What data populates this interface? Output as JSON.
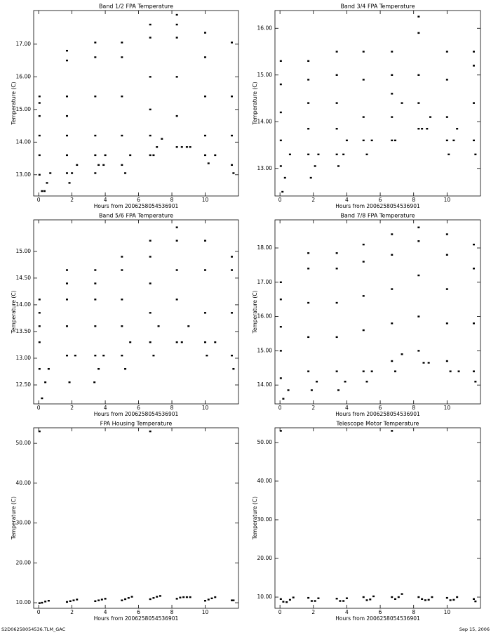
{
  "chart_data": [
    {
      "type": "scatter",
      "title": "Band 1/2 FPA Temperature",
      "xlabel": "Hours from 2006258054536901",
      "ylabel": "Temperature (C)",
      "color": "#000000",
      "xlim": [
        -0.3,
        12.0
      ],
      "xticks": [
        0,
        2,
        4,
        6,
        8,
        10
      ],
      "ylim": [
        12.35,
        18.03
      ],
      "yticks": [
        {
          "value": 13,
          "label": "13.00"
        },
        {
          "value": 14,
          "label": "14.00"
        },
        {
          "value": 15,
          "label": "15.00"
        },
        {
          "value": 16,
          "label": "16.00"
        },
        {
          "value": 17,
          "label": "17.00"
        }
      ],
      "x": [
        0.05,
        0.05,
        0.05,
        0.05,
        0.05,
        0.05,
        0.2,
        0.35,
        0.5,
        0.7,
        1.7,
        1.7,
        1.7,
        1.7,
        1.7,
        1.7,
        1.7,
        1.85,
        2.0,
        2.3,
        3.4,
        3.4,
        3.4,
        3.4,
        3.4,
        3.4,
        3.6,
        3.9,
        4.0,
        5.0,
        5.0,
        5.0,
        5.0,
        5.0,
        5.2,
        5.5,
        6.7,
        6.7,
        6.7,
        6.7,
        6.7,
        6.7,
        6.9,
        7.1,
        7.4,
        8.3,
        8.3,
        8.3,
        8.3,
        8.3,
        8.3,
        8.6,
        8.9,
        9.1,
        10.0,
        10.0,
        10.0,
        10.0,
        10.0,
        10.2,
        10.6,
        11.6,
        11.6,
        11.6,
        11.6,
        11.7
      ],
      "y": [
        13.0,
        13.6,
        14.2,
        14.8,
        15.2,
        15.4,
        12.5,
        12.5,
        12.75,
        13.05,
        13.05,
        13.6,
        14.2,
        14.8,
        15.4,
        16.5,
        16.8,
        12.75,
        13.05,
        13.3,
        13.05,
        13.6,
        14.2,
        15.4,
        16.6,
        17.05,
        13.3,
        13.3,
        13.6,
        13.3,
        14.2,
        15.4,
        16.6,
        17.05,
        13.05,
        13.6,
        13.6,
        14.2,
        15.0,
        16.0,
        17.2,
        17.6,
        13.6,
        13.85,
        14.1,
        13.85,
        14.8,
        16.0,
        17.2,
        17.6,
        17.9,
        13.85,
        13.85,
        13.85,
        13.6,
        14.2,
        15.4,
        16.6,
        17.35,
        13.35,
        13.6,
        13.3,
        14.2,
        15.4,
        17.05,
        13.05
      ]
    },
    {
      "type": "scatter",
      "title": "Band 3/4 FPA Temperature",
      "xlabel": "Hours from 2006258054536901",
      "ylabel": "Temperature (C)",
      "color": "#000000",
      "xlim": [
        -0.3,
        12.0
      ],
      "xticks": [
        0,
        2,
        4,
        6,
        8,
        10
      ],
      "ylim": [
        12.41,
        16.38
      ],
      "yticks": [
        {
          "value": 13,
          "label": "13.00"
        },
        {
          "value": 14,
          "label": "14.00"
        },
        {
          "value": 15,
          "label": "15.00"
        },
        {
          "value": 16,
          "label": "16.00"
        }
      ],
      "x": [
        0.05,
        0.05,
        0.05,
        0.05,
        0.05,
        0.15,
        0.3,
        0.6,
        1.7,
        1.7,
        1.7,
        1.7,
        1.7,
        1.85,
        2.1,
        2.3,
        3.4,
        3.4,
        3.4,
        3.4,
        3.4,
        3.5,
        3.8,
        4.0,
        5.0,
        5.0,
        5.0,
        5.0,
        5.2,
        5.5,
        6.7,
        6.7,
        6.7,
        6.7,
        6.7,
        6.9,
        7.3,
        8.3,
        8.3,
        8.3,
        8.3,
        8.3,
        8.5,
        8.8,
        9.0,
        10.0,
        10.0,
        10.0,
        10.0,
        10.1,
        10.4,
        10.6,
        11.6,
        11.6,
        11.6,
        11.6,
        11.7
      ],
      "y": [
        13.05,
        13.6,
        14.2,
        14.8,
        15.3,
        12.5,
        12.8,
        13.3,
        13.3,
        13.85,
        14.4,
        14.9,
        15.3,
        12.8,
        13.05,
        13.3,
        13.3,
        13.85,
        14.4,
        15.0,
        15.5,
        13.05,
        13.3,
        13.6,
        13.6,
        14.1,
        14.9,
        15.5,
        13.3,
        13.6,
        13.6,
        14.1,
        14.6,
        15.0,
        15.5,
        13.6,
        14.4,
        13.85,
        14.4,
        15.0,
        15.9,
        16.25,
        13.85,
        13.85,
        14.1,
        13.6,
        14.1,
        14.9,
        15.5,
        13.3,
        13.6,
        13.85,
        13.6,
        14.4,
        15.2,
        15.5,
        13.3
      ]
    },
    {
      "type": "scatter",
      "title": "Band 5/6 FPA Temperature",
      "xlabel": "Hours from 2006258054536901",
      "ylabel": "Temperature (C)",
      "color": "#000000",
      "xlim": [
        -0.3,
        12.0
      ],
      "xticks": [
        0,
        2,
        4,
        6,
        8,
        10
      ],
      "ylim": [
        12.145,
        15.59
      ],
      "yticks": [
        {
          "value": 12.5,
          "label": "12.50"
        },
        {
          "value": 13,
          "label": "13.00"
        },
        {
          "value": 13.5,
          "label": "13.50"
        },
        {
          "value": 14,
          "label": "14.00"
        },
        {
          "value": 14.5,
          "label": "14.50"
        },
        {
          "value": 15,
          "label": "15.00"
        }
      ],
      "x": [
        0.05,
        0.05,
        0.05,
        0.05,
        0.05,
        0.2,
        0.4,
        0.6,
        1.7,
        1.7,
        1.7,
        1.7,
        1.7,
        1.85,
        2.2,
        3.4,
        3.4,
        3.4,
        3.4,
        3.4,
        3.35,
        3.6,
        3.9,
        5.0,
        5.0,
        5.0,
        5.0,
        5.0,
        5.2,
        5.5,
        6.7,
        6.7,
        6.7,
        6.7,
        6.7,
        6.9,
        7.2,
        8.3,
        8.3,
        8.3,
        8.3,
        8.3,
        8.6,
        9.0,
        10.0,
        10.0,
        10.0,
        10.0,
        10.1,
        10.6,
        11.6,
        11.6,
        11.6,
        11.6,
        11.7
      ],
      "y": [
        12.8,
        13.3,
        13.6,
        13.85,
        14.1,
        12.25,
        12.55,
        12.8,
        13.05,
        13.6,
        14.1,
        14.4,
        14.65,
        12.55,
        13.05,
        13.05,
        13.6,
        14.1,
        14.4,
        14.65,
        12.55,
        12.8,
        13.05,
        13.05,
        13.6,
        14.1,
        14.65,
        14.9,
        12.8,
        13.3,
        13.3,
        13.85,
        14.4,
        14.9,
        15.2,
        13.05,
        13.6,
        13.3,
        14.1,
        14.65,
        15.2,
        15.45,
        13.3,
        13.6,
        13.3,
        13.85,
        14.65,
        15.2,
        13.05,
        13.3,
        13.05,
        13.85,
        14.65,
        14.9,
        12.8
      ]
    },
    {
      "type": "scatter",
      "title": "Band 7/8 FPA Temperature",
      "xlabel": "Hours from 2006258054536901",
      "ylabel": "Temperature (C)",
      "color": "#000000",
      "xlim": [
        -0.3,
        12.0
      ],
      "xticks": [
        0,
        2,
        4,
        6,
        8,
        10
      ],
      "ylim": [
        13.45,
        18.82
      ],
      "yticks": [
        {
          "value": 14,
          "label": "14.00"
        },
        {
          "value": 15,
          "label": "15.00"
        },
        {
          "value": 16,
          "label": "16.00"
        },
        {
          "value": 17,
          "label": "17.00"
        },
        {
          "value": 18,
          "label": "18.00"
        }
      ],
      "x": [
        0.05,
        0.05,
        0.05,
        0.05,
        0.05,
        0.2,
        0.5,
        1.7,
        1.7,
        1.7,
        1.7,
        1.7,
        1.9,
        2.2,
        3.4,
        3.4,
        3.4,
        3.4,
        3.4,
        3.5,
        3.9,
        5.0,
        5.0,
        5.0,
        5.0,
        5.0,
        5.2,
        5.5,
        6.7,
        6.7,
        6.7,
        6.7,
        6.7,
        6.9,
        7.3,
        8.3,
        8.3,
        8.3,
        8.3,
        8.3,
        8.6,
        8.9,
        10.0,
        10.0,
        10.0,
        10.0,
        10.0,
        10.2,
        10.7,
        11.6,
        11.6,
        11.6,
        11.6,
        11.7
      ],
      "y": [
        14.2,
        15.0,
        15.7,
        16.5,
        17.0,
        13.6,
        13.85,
        14.4,
        15.4,
        16.4,
        17.4,
        17.85,
        13.85,
        14.1,
        14.4,
        15.4,
        16.4,
        17.4,
        17.85,
        13.85,
        14.1,
        14.4,
        15.6,
        16.6,
        17.6,
        18.1,
        14.1,
        14.4,
        14.7,
        15.8,
        16.8,
        17.8,
        18.4,
        14.4,
        14.9,
        15.0,
        16.0,
        17.2,
        18.2,
        18.6,
        14.65,
        14.65,
        14.7,
        15.8,
        16.8,
        17.8,
        18.4,
        14.4,
        14.4,
        14.4,
        15.8,
        17.4,
        18.1,
        14.1
      ]
    },
    {
      "type": "scatter",
      "title": "FPA Housing Temperature",
      "xlabel": "Hours from 2006258054536901",
      "ylabel": "Temperature (C)",
      "color": "#000000",
      "xlim": [
        -0.3,
        12.0
      ],
      "xticks": [
        0,
        2,
        4,
        6,
        8,
        10
      ],
      "ylim": [
        8.6,
        53.9
      ],
      "yticks": [
        {
          "value": 10,
          "label": "10.00"
        },
        {
          "value": 20,
          "label": "20.00"
        },
        {
          "value": 30,
          "label": "30.00"
        },
        {
          "value": 40,
          "label": "40.00"
        },
        {
          "value": 50,
          "label": "50.00"
        }
      ],
      "x": [
        0.05,
        0.05,
        0.2,
        0.4,
        0.6,
        1.7,
        1.9,
        2.1,
        2.3,
        3.4,
        3.6,
        3.8,
        4.0,
        5.0,
        5.2,
        5.4,
        5.6,
        6.7,
        6.7,
        6.9,
        7.1,
        7.3,
        8.3,
        8.5,
        8.7,
        8.9,
        9.1,
        10.0,
        10.2,
        10.4,
        10.6,
        11.6,
        11.7
      ],
      "y": [
        9.9,
        53.0,
        10.0,
        10.3,
        10.5,
        10.2,
        10.4,
        10.6,
        10.8,
        10.4,
        10.6,
        10.8,
        11.0,
        10.6,
        10.9,
        11.2,
        11.5,
        10.9,
        53.0,
        11.2,
        11.5,
        11.7,
        11.0,
        11.3,
        11.4,
        11.4,
        11.4,
        10.5,
        10.8,
        11.1,
        11.4,
        10.6,
        10.6
      ]
    },
    {
      "type": "scatter",
      "title": "Telescope Motor Temperature",
      "xlabel": "Hours from 2006258054536901",
      "ylabel": "Temperature (C)",
      "color": "#000000",
      "xlim": [
        -0.3,
        12.0
      ],
      "xticks": [
        0,
        2,
        4,
        6,
        8,
        10
      ],
      "ylim": [
        7.1,
        53.8
      ],
      "yticks": [
        {
          "value": 10,
          "label": "10.00"
        },
        {
          "value": 20,
          "label": "20.00"
        },
        {
          "value": 30,
          "label": "30.00"
        },
        {
          "value": 40,
          "label": "40.00"
        },
        {
          "value": 50,
          "label": "50.00"
        }
      ],
      "x": [
        0.05,
        0.05,
        0.2,
        0.4,
        0.6,
        0.8,
        1.7,
        1.9,
        2.1,
        2.3,
        3.4,
        3.6,
        3.8,
        4.0,
        5.0,
        5.2,
        5.4,
        5.6,
        6.7,
        6.7,
        6.9,
        7.1,
        7.3,
        8.3,
        8.5,
        8.7,
        8.9,
        9.1,
        10.0,
        10.2,
        10.4,
        10.6,
        11.6,
        11.7
      ],
      "y": [
        9.5,
        53.0,
        8.8,
        8.7,
        9.3,
        9.9,
        9.8,
        9.0,
        9.0,
        9.7,
        9.6,
        9.0,
        9.0,
        9.7,
        10.0,
        9.2,
        9.4,
        10.2,
        10.0,
        53.0,
        9.5,
        10.0,
        10.8,
        10.0,
        9.5,
        9.2,
        9.3,
        10.0,
        9.8,
        9.2,
        9.3,
        10.0,
        9.5,
        8.9
      ]
    }
  ],
  "footer": {
    "left": "S2D06258054536.TLM_GAC",
    "right": "Sep 15, 2006"
  }
}
